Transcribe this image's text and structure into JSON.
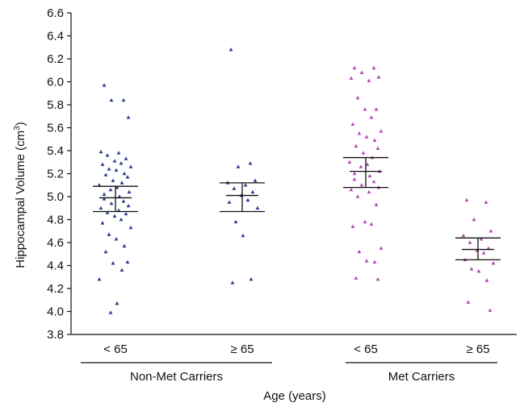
{
  "chart_data": {
    "type": "scatter",
    "title": "",
    "xlabel": "Age (years)",
    "ylabel": "Hippocampal Volume (cm",
    "ylabel_sup": "3",
    "ylabel_suffix": ")",
    "ylim": [
      3.8,
      6.6
    ],
    "yticks": [
      "3.8",
      "4.0",
      "4.2",
      "4.4",
      "4.6",
      "4.8",
      "5.0",
      "5.2",
      "5.4",
      "5.6",
      "5.8",
      "6.0",
      "6.2",
      "6.4",
      "6.6"
    ],
    "categories": [
      "< 65",
      "≥ 65",
      "< 65",
      "≥ 65"
    ],
    "groups": [
      {
        "label": "Non-Met Carriers",
        "categories": [
          0,
          1
        ]
      },
      {
        "label": "Met Carriers",
        "categories": [
          2,
          3
        ]
      }
    ],
    "colors": {
      "non_met": "#2a3d8f",
      "met": "#b04cb0"
    },
    "grid": false,
    "legend": "none",
    "series": [
      {
        "category": 0,
        "color": "#2a3d8f",
        "mean": 4.99,
        "upper": 5.09,
        "lower": 4.87,
        "values": [
          5.97,
          5.84,
          5.84,
          5.69,
          5.39,
          5.38,
          5.36,
          5.33,
          5.31,
          5.29,
          5.28,
          5.26,
          5.24,
          5.23,
          5.2,
          5.19,
          5.17,
          5.14,
          5.12,
          5.1,
          5.08,
          5.06,
          5.04,
          5.02,
          5.0,
          4.98,
          4.96,
          4.94,
          4.92,
          4.9,
          4.88,
          4.86,
          4.85,
          4.83,
          4.8,
          4.77,
          4.73,
          4.67,
          4.63,
          4.57,
          4.52,
          4.43,
          4.42,
          4.36,
          4.28,
          4.07,
          3.99
        ]
      },
      {
        "category": 1,
        "color": "#2a3d8f",
        "mean": 5.01,
        "upper": 5.12,
        "lower": 4.87,
        "values": [
          6.28,
          5.29,
          5.26,
          5.14,
          5.12,
          5.1,
          5.07,
          5.04,
          5.01,
          4.97,
          4.95,
          4.9,
          4.78,
          4.66,
          4.28,
          4.25
        ]
      },
      {
        "category": 2,
        "color": "#b04cb0",
        "mean": 5.22,
        "upper": 5.34,
        "lower": 5.08,
        "values": [
          6.12,
          6.12,
          6.08,
          6.04,
          6.03,
          6.01,
          5.86,
          5.76,
          5.76,
          5.69,
          5.63,
          5.57,
          5.55,
          5.52,
          5.49,
          5.44,
          5.42,
          5.38,
          5.34,
          5.3,
          5.28,
          5.26,
          5.22,
          5.2,
          5.18,
          5.15,
          5.13,
          5.1,
          5.08,
          5.06,
          5.04,
          5.0,
          4.93,
          4.78,
          4.76,
          4.74,
          4.55,
          4.52,
          4.44,
          4.43,
          4.29,
          4.28
        ]
      },
      {
        "category": 3,
        "color": "#b04cb0",
        "mean": 4.54,
        "upper": 4.64,
        "lower": 4.45,
        "values": [
          4.97,
          4.95,
          4.8,
          4.7,
          4.66,
          4.63,
          4.6,
          4.55,
          4.53,
          4.51,
          4.45,
          4.42,
          4.37,
          4.35,
          4.27,
          4.08,
          4.01
        ]
      }
    ]
  }
}
